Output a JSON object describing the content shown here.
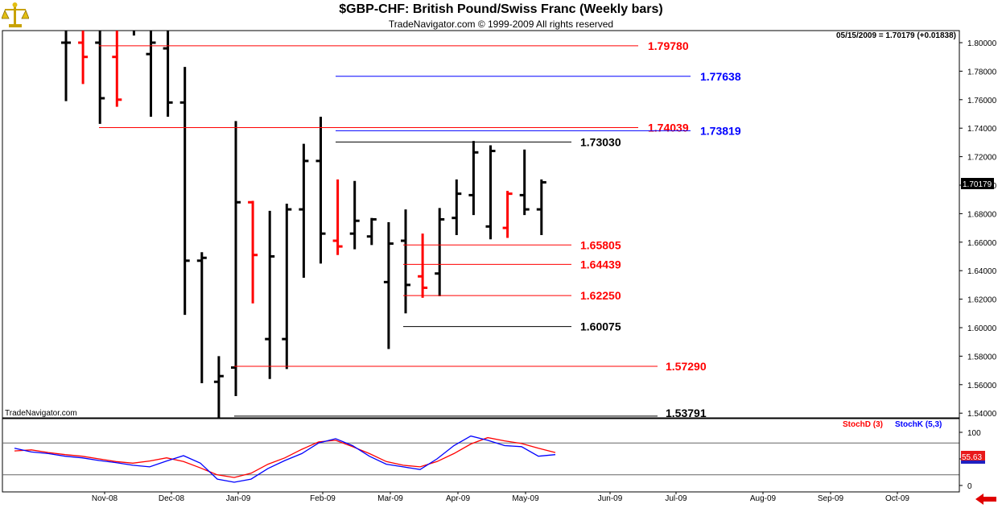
{
  "header": {
    "title": "$GBP-CHF:  British Pound/Swiss Franc  (Weekly bars)",
    "copyright": "TradeNavigator.com © 1999-2009 All rights reserved"
  },
  "watermark": "TradeNavigator.com",
  "price_readout": "05/15/2009 = 1.70179 (+0.01838)",
  "last_price_label": "1.70179",
  "stoch_value_label": "55.63",
  "colors": {
    "up_bar": "#000000",
    "down_bar": "#ff0000",
    "stoch_d": "#ff0000",
    "stoch_k": "#0000ff",
    "level_red": "#ff0000",
    "level_blue": "#0000ff",
    "level_black": "#000000"
  },
  "icons": {
    "logo": "pan-balance-icon",
    "scroll": "left-arrow-icon"
  },
  "chart_data": [
    {
      "type": "ohlc",
      "ylim": [
        1.53,
        1.8125
      ],
      "x_ticks": [
        "Nov-08",
        "Dec-08",
        "Jan-09",
        "Feb-09",
        "Mar-09",
        "Apr-09",
        "May-09",
        "Jun-09",
        "Jul-09",
        "Aug-09",
        "Sep-09",
        "Oct-09"
      ],
      "y_ticks": [
        "1.80000",
        "1.78000",
        "1.76000",
        "1.74000",
        "1.72000",
        "1.70000",
        "1.68000",
        "1.66000",
        "1.64000",
        "1.62000",
        "1.60000",
        "1.58000",
        "1.56000",
        "1.54000"
      ],
      "bars": [
        {
          "open": 1.8,
          "high": 1.81,
          "low": 1.759,
          "close": 1.8,
          "color": "black"
        },
        {
          "open": 1.8,
          "high": 1.81,
          "low": 1.771,
          "close": 1.79,
          "color": "red"
        },
        {
          "open": 1.8,
          "high": 1.81,
          "low": 1.743,
          "close": 1.761,
          "color": "black"
        },
        {
          "open": 1.79,
          "high": 1.81,
          "low": 1.755,
          "close": 1.76,
          "color": "red"
        },
        {
          "open": 1.81,
          "high": 1.813,
          "low": 1.805,
          "close": 1.81,
          "color": "black"
        },
        {
          "open": 1.792,
          "high": 1.81,
          "low": 1.748,
          "close": 1.8,
          "color": "black"
        },
        {
          "open": 1.796,
          "high": 1.81,
          "low": 1.748,
          "close": 1.758,
          "color": "black"
        },
        {
          "open": 1.758,
          "high": 1.783,
          "low": 1.609,
          "close": 1.647,
          "color": "black"
        },
        {
          "open": 1.647,
          "high": 1.653,
          "low": 1.561,
          "close": 1.649,
          "color": "black"
        },
        {
          "open": 1.562,
          "high": 1.58,
          "low": 1.533,
          "close": 1.566,
          "color": "black"
        },
        {
          "open": 1.572,
          "high": 1.745,
          "low": 1.552,
          "close": 1.688,
          "color": "black"
        },
        {
          "open": 1.688,
          "high": 1.689,
          "low": 1.617,
          "close": 1.651,
          "color": "red"
        },
        {
          "open": 1.592,
          "high": 1.682,
          "low": 1.564,
          "close": 1.65,
          "color": "black"
        },
        {
          "open": 1.592,
          "high": 1.687,
          "low": 1.571,
          "close": 1.683,
          "color": "black"
        },
        {
          "open": 1.683,
          "high": 1.729,
          "low": 1.635,
          "close": 1.717,
          "color": "black"
        },
        {
          "open": 1.717,
          "high": 1.748,
          "low": 1.645,
          "close": 1.666,
          "color": "black"
        },
        {
          "open": 1.661,
          "high": 1.704,
          "low": 1.651,
          "close": 1.657,
          "color": "red"
        },
        {
          "open": 1.666,
          "high": 1.703,
          "low": 1.655,
          "close": 1.675,
          "color": "black"
        },
        {
          "open": 1.664,
          "high": 1.677,
          "low": 1.658,
          "close": 1.676,
          "color": "black"
        },
        {
          "open": 1.632,
          "high": 1.674,
          "low": 1.585,
          "close": 1.659,
          "color": "black"
        },
        {
          "open": 1.661,
          "high": 1.683,
          "low": 1.61,
          "close": 1.63,
          "color": "black"
        },
        {
          "open": 1.636,
          "high": 1.666,
          "low": 1.621,
          "close": 1.628,
          "color": "red"
        },
        {
          "open": 1.638,
          "high": 1.684,
          "low": 1.622,
          "close": 1.676,
          "color": "black"
        },
        {
          "open": 1.677,
          "high": 1.704,
          "low": 1.665,
          "close": 1.694,
          "color": "black"
        },
        {
          "open": 1.693,
          "high": 1.731,
          "low": 1.679,
          "close": 1.723,
          "color": "black"
        },
        {
          "open": 1.671,
          "high": 1.728,
          "low": 1.662,
          "close": 1.724,
          "color": "black"
        },
        {
          "open": 1.67,
          "high": 1.696,
          "low": 1.663,
          "close": 1.694,
          "color": "red"
        },
        {
          "open": 1.693,
          "high": 1.725,
          "low": 1.679,
          "close": 1.683,
          "color": "black"
        },
        {
          "open": 1.683,
          "high": 1.704,
          "low": 1.665,
          "close": 1.702,
          "color": "black"
        }
      ],
      "levels": [
        {
          "label": "1.79780",
          "value": 1.7978,
          "color": "red"
        },
        {
          "label": "1.77638",
          "value": 1.77638,
          "color": "blue"
        },
        {
          "label": "1.74039",
          "value": 1.74039,
          "color": "red"
        },
        {
          "label": "1.73819",
          "value": 1.73819,
          "color": "blue"
        },
        {
          "label": "1.73030",
          "value": 1.7303,
          "color": "black"
        },
        {
          "label": "1.65805",
          "value": 1.65805,
          "color": "red"
        },
        {
          "label": "1.64439",
          "value": 1.64439,
          "color": "red"
        },
        {
          "label": "1.62250",
          "value": 1.6225,
          "color": "red"
        },
        {
          "label": "1.60075",
          "value": 1.60075,
          "color": "black"
        },
        {
          "label": "1.57290",
          "value": 1.5729,
          "color": "red"
        },
        {
          "label": "1.53791",
          "value": 1.53791,
          "color": "black"
        }
      ]
    },
    {
      "type": "line",
      "title": "",
      "ylim": [
        0,
        100
      ],
      "y_ticks": [
        "100",
        "50",
        "0"
      ],
      "guide_lines": [
        80,
        20
      ],
      "series": [
        {
          "name": "StochD (3)",
          "color": "red",
          "values": [
            65,
            67,
            62,
            58,
            55,
            50,
            45,
            42,
            46,
            52,
            45,
            33,
            20,
            15,
            23,
            40,
            52,
            68,
            82,
            85,
            73,
            60,
            45,
            38,
            35,
            45,
            60,
            78,
            90,
            84,
            79,
            70,
            62
          ]
        },
        {
          "name": "StochK (5,3)",
          "color": "blue",
          "values": [
            70,
            63,
            60,
            55,
            52,
            47,
            43,
            38,
            35,
            46,
            56,
            42,
            12,
            6,
            12,
            32,
            47,
            60,
            80,
            88,
            75,
            55,
            40,
            35,
            30,
            50,
            75,
            93,
            85,
            75,
            73,
            55,
            58
          ]
        }
      ]
    }
  ]
}
